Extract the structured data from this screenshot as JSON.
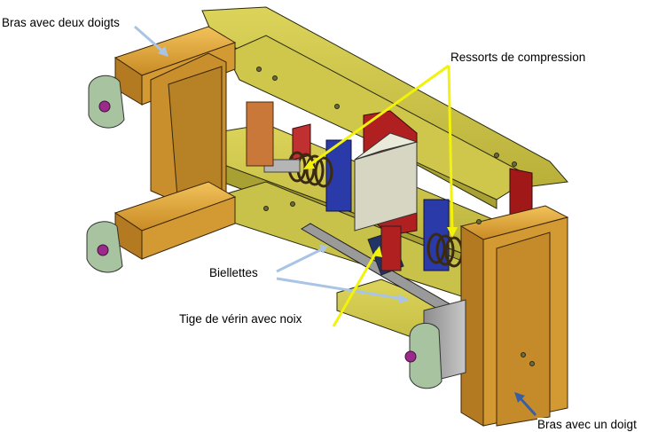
{
  "labels": {
    "bras_deux_doigts": "Bras avec deux doigts",
    "ressorts": "Ressorts de compression",
    "biellettes": "Biellettes",
    "tige_verin": "Tige de vérin avec noix",
    "bras_un_doigt": "Bras avec un doigt"
  },
  "colors": {
    "arm_orange": "#d9a23a",
    "plate_olive": "#c9c24a",
    "spring_blue": "#2a3aa8",
    "frame_red": "#b02020",
    "pointer_yellow": "#f2f20a",
    "pointer_lightblue": "#a9c4e4",
    "pointer_darkblue": "#3a5fa0",
    "mount_green": "#a8c3a0"
  }
}
